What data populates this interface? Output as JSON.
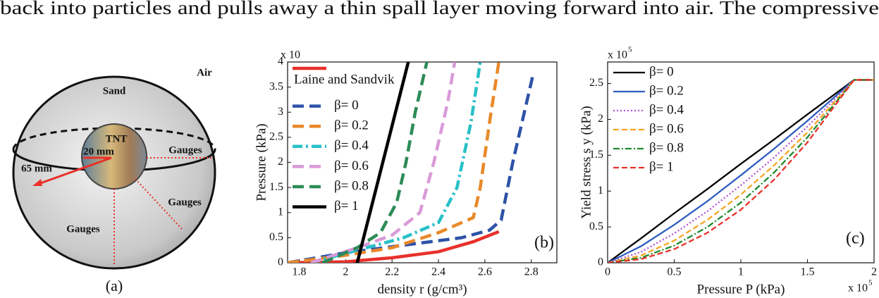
{
  "body_text": "back into particles and pulls away a thin spall layer moving forward into air. The compressive",
  "figure_a": {
    "sand": "Sand",
    "air": "Air",
    "tnt": "TNT",
    "inner_radius": "20 mm",
    "outer_radius": "65 mm",
    "gauges": [
      "Gauges",
      "Gauges",
      "Gauges"
    ],
    "panel_label": "(a)"
  },
  "chart_data": [
    {
      "type": "line",
      "ylabel": "Pressure (kPa)",
      "xlabel": "density r (g/cm³)",
      "multiplier": "x 10",
      "panel_label": "(b)",
      "xlim": [
        1.75,
        2.91
      ],
      "ylim": [
        0,
        4
      ],
      "xticks": [
        1.8,
        2,
        2.2,
        2.4,
        2.6,
        2.8
      ],
      "yticks": [
        0,
        0.5,
        1,
        1.5,
        2,
        2.5,
        3,
        3.5,
        4
      ],
      "series": [
        {
          "name": "Laine and Sandvik",
          "color": "#e8312a",
          "dash": "solid",
          "x": [
            1.75,
            2.0,
            2.2,
            2.4,
            2.55,
            2.66
          ],
          "values": [
            0,
            0.02,
            0.1,
            0.22,
            0.42,
            0.62
          ]
        },
        {
          "name": "β= 0",
          "color": "#2e52a8",
          "dash": "dashed",
          "x": [
            1.75,
            2.0,
            2.3,
            2.5,
            2.62,
            2.67,
            2.72,
            2.78,
            2.81
          ],
          "values": [
            0,
            0.2,
            0.38,
            0.5,
            0.65,
            0.85,
            2.0,
            3.2,
            3.8
          ]
        },
        {
          "name": "β= 0.2",
          "color": "#e9892a",
          "dash": "dashed",
          "x": [
            1.75,
            2.0,
            2.2,
            2.4,
            2.55,
            2.58,
            2.62,
            2.66
          ],
          "values": [
            0,
            0.15,
            0.3,
            0.6,
            0.9,
            1.5,
            2.8,
            4.0
          ]
        },
        {
          "name": "β= 0.4",
          "color": "#28c0c8",
          "dash": "dashdot",
          "x": [
            1.85,
            2.05,
            2.25,
            2.4,
            2.48,
            2.54,
            2.58
          ],
          "values": [
            0,
            0.25,
            0.5,
            0.8,
            1.5,
            2.8,
            4.0
          ]
        },
        {
          "name": "β= 0.6",
          "color": "#d99ad8",
          "dash": "dashed",
          "x": [
            1.85,
            2.05,
            2.2,
            2.32,
            2.38,
            2.44,
            2.47
          ],
          "values": [
            0,
            0.3,
            0.55,
            1.0,
            2.0,
            3.2,
            4.0
          ]
        },
        {
          "name": "β= 0.8",
          "color": "#2e8b57",
          "dash": "dashed",
          "x": [
            1.9,
            2.05,
            2.15,
            2.22,
            2.26,
            2.3,
            2.35
          ],
          "values": [
            0,
            0.3,
            0.6,
            1.2,
            2.0,
            3.0,
            4.0
          ]
        },
        {
          "name": "β= 1",
          "color": "#000000",
          "dash": "solid",
          "x": [
            2.05,
            2.27
          ],
          "values": [
            0,
            4.0
          ]
        }
      ]
    },
    {
      "type": "line",
      "ylabel": "Yield stress s y (kPa)",
      "xlabel": "Pressure P (kPa)",
      "multiplier": "x 10",
      "multiplier_exp": "5",
      "panel_label": "(c)",
      "xlim": [
        0,
        2
      ],
      "ylim": [
        0,
        2.8
      ],
      "xticks": [
        0,
        0.5,
        1,
        1.5,
        2
      ],
      "yticks": [
        0,
        0.5,
        1,
        1.5,
        2,
        2.5
      ],
      "x": [
        0,
        0.25,
        0.5,
        0.75,
        1,
        1.25,
        1.5,
        1.85,
        2
      ],
      "series": [
        {
          "name": "β= 0",
          "color": "#000000",
          "dash": "solid",
          "values": [
            0,
            0.34,
            0.69,
            1.03,
            1.38,
            1.72,
            2.07,
            2.55,
            2.55
          ]
        },
        {
          "name": "β= 0.2",
          "color": "#2e5cc0",
          "dash": "solid",
          "values": [
            0,
            0.23,
            0.53,
            0.86,
            1.22,
            1.59,
            1.98,
            2.55,
            2.55
          ]
        },
        {
          "name": "β= 0.4",
          "color": "#b04fd0",
          "dash": "dotted",
          "values": [
            0,
            0.15,
            0.41,
            0.72,
            1.08,
            1.47,
            1.9,
            2.55,
            2.55
          ]
        },
        {
          "name": "β= 0.6",
          "color": "#f5a623",
          "dash": "dashed",
          "values": [
            0,
            0.1,
            0.31,
            0.6,
            0.95,
            1.36,
            1.82,
            2.55,
            2.55
          ]
        },
        {
          "name": "β= 0.8",
          "color": "#1e8a2e",
          "dash": "dashdot",
          "values": [
            0,
            0.07,
            0.24,
            0.5,
            0.84,
            1.26,
            1.75,
            2.55,
            2.55
          ]
        },
        {
          "name": "β= 1",
          "color": "#e8312a",
          "dash": "dashed",
          "values": [
            0,
            0.05,
            0.19,
            0.42,
            0.74,
            1.16,
            1.68,
            2.55,
            2.55
          ]
        }
      ]
    }
  ]
}
